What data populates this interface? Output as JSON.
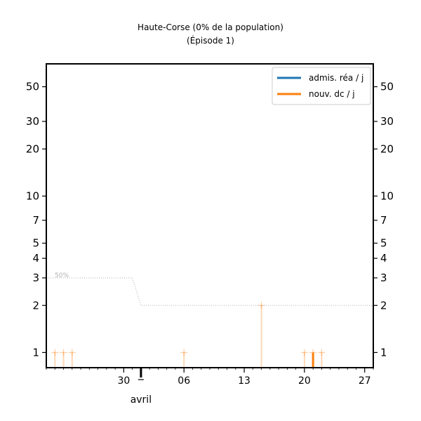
{
  "chart_data": {
    "type": "line",
    "title": "Haute-Corse (0% de la population)",
    "subtitle": "(Épisode 1)",
    "yscale": "log",
    "ylim": [
      0.8,
      70
    ],
    "y_ticks": [
      1,
      2,
      3,
      4,
      5,
      7,
      10,
      20,
      30,
      50
    ],
    "y_tick_labels": [
      "1",
      "2",
      "3",
      "4",
      "5",
      "7",
      "10",
      "20",
      "30",
      "50"
    ],
    "x_start": "2020-03-21",
    "x_end": "2020-04-28",
    "x_ticks": [
      {
        "date": "2020-03-30",
        "label": "30"
      },
      {
        "date": "2020-04-06",
        "label": "06"
      },
      {
        "date": "2020-04-13",
        "label": "13"
      },
      {
        "date": "2020-04-20",
        "label": "20"
      },
      {
        "date": "2020-04-27",
        "label": "27"
      }
    ],
    "month_label": {
      "date": "2020-04-01",
      "label": "avril"
    },
    "legend": [
      {
        "label": "admis. réa / j",
        "color": "#1f77b4"
      },
      {
        "label": "nouv. dc / j",
        "color": "#ff7f0e"
      }
    ],
    "reference_line": {
      "label": "50%",
      "color": "#b0b0b0",
      "points": [
        {
          "date": "2020-03-21",
          "value": 3.0
        },
        {
          "date": "2020-03-31",
          "value": 3.0
        },
        {
          "date": "2020-04-01",
          "value": 2.0
        },
        {
          "date": "2020-04-28",
          "value": 2.0
        }
      ]
    },
    "series": [
      {
        "name": "admis. réa / j",
        "color": "#1f77b4",
        "points": []
      },
      {
        "name": "nouv. dc / j",
        "color": "#ff7f0e",
        "points": [
          {
            "date": "2020-04-21",
            "value": 1
          }
        ]
      }
    ],
    "faint_daily_markers": [
      {
        "date": "2020-03-22",
        "value": 1
      },
      {
        "date": "2020-03-23",
        "value": 1
      },
      {
        "date": "2020-03-24",
        "value": 1
      },
      {
        "date": "2020-04-06",
        "value": 1
      },
      {
        "date": "2020-04-15",
        "value": 2
      },
      {
        "date": "2020-04-20",
        "value": 1
      },
      {
        "date": "2020-04-21",
        "value": 1
      },
      {
        "date": "2020-04-22",
        "value": 1
      }
    ]
  }
}
